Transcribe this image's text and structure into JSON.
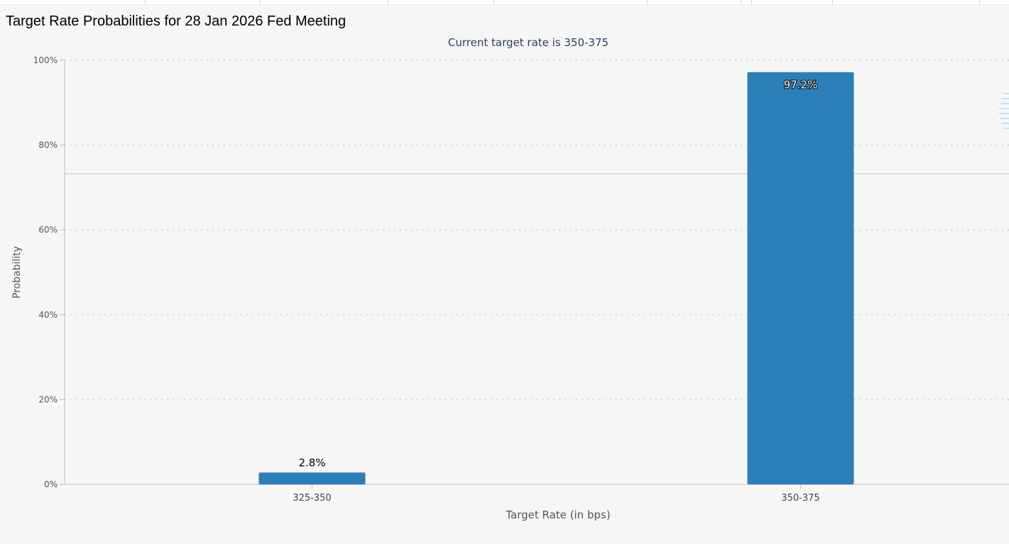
{
  "page": {
    "title": "Target Rate Probabilities for 28 Jan 2026 Fed Meeting"
  },
  "colors": {
    "bar": "#2a7fb8",
    "grid": "#d8d8d8",
    "axis": "#c0c0c0",
    "background": "#f6f6f6",
    "subtitle": "#2e3e5e"
  },
  "chart_data": {
    "type": "bar",
    "title": "",
    "subtitle": "Current target rate is 350-375",
    "xlabel": "Target Rate (in bps)",
    "ylabel": "Probability",
    "categories": [
      "325-350",
      "350-375"
    ],
    "values": [
      2.8,
      97.2
    ],
    "data_labels": [
      "2.8%",
      "97.2%"
    ],
    "ylim": [
      0,
      100
    ],
    "yticks": [
      0,
      20,
      40,
      60,
      80,
      100
    ],
    "ytick_labels": [
      "0%",
      "20%",
      "40%",
      "60%",
      "80%",
      "100%"
    ],
    "grid": true,
    "legend": "none"
  }
}
